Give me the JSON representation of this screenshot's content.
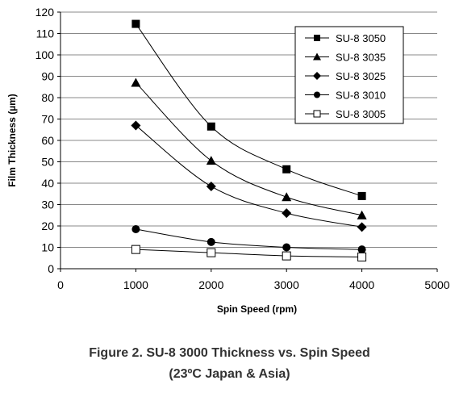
{
  "chart_data": {
    "type": "line",
    "xlabel": "Spin Speed (rpm)",
    "ylabel": "Film Thickness (µm)",
    "xlim": [
      0,
      5000
    ],
    "ylim": [
      0,
      120
    ],
    "xticks": [
      "0",
      "1000",
      "2000",
      "3000",
      "4000",
      "5000"
    ],
    "yticks": [
      "0",
      "10",
      "20",
      "30",
      "40",
      "50",
      "60",
      "70",
      "80",
      "90",
      "100",
      "110",
      "120"
    ],
    "grid": "horizontal",
    "legend_position": "top-right",
    "x": [
      1000,
      2000,
      3000,
      4000
    ],
    "series": [
      {
        "name": "SU-8 3050",
        "marker": "square",
        "values": [
          114.5,
          66.5,
          46.5,
          34
        ]
      },
      {
        "name": "SU-8 3035",
        "marker": "triangle",
        "values": [
          87,
          50.5,
          33.5,
          25
        ]
      },
      {
        "name": "SU-8 3025",
        "marker": "diamond",
        "values": [
          67,
          38.5,
          26,
          19.5
        ]
      },
      {
        "name": "SU-8 3010",
        "marker": "circle",
        "values": [
          18.5,
          12.5,
          10,
          9
        ]
      },
      {
        "name": "SU-8 3005",
        "marker": "open-square",
        "values": [
          9,
          7.5,
          6,
          5.5
        ]
      }
    ],
    "line_color": "#000000",
    "grid_color": "#888888"
  },
  "caption": {
    "line1": "Figure 2. SU-8 3000 Thickness vs. Spin Speed",
    "line2": "(23ºC Japan & Asia)"
  }
}
